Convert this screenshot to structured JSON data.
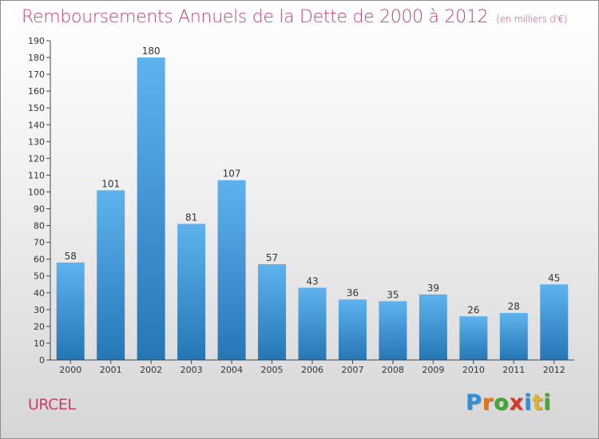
{
  "header": {
    "title": "Remboursements Annuels de la Dette de 2000 à 2012",
    "unit": "(en milliers d'€)"
  },
  "footer": {
    "location": "URCEL",
    "brand_letters": [
      "P",
      "r",
      "o",
      "x",
      "i",
      "t",
      "i"
    ],
    "brand_colors": [
      "#2f8fd8",
      "#e8741a",
      "#43a82f",
      "#d8362a",
      "#2f8fd8",
      "#e8b21a",
      "#43a82f"
    ]
  },
  "colors": {
    "title": "#c8406a",
    "bar_light": "#5eb3ee",
    "bar_dark": "#2576b5",
    "axis": "#444444"
  },
  "chart_data": {
    "type": "bar",
    "title": "Remboursements Annuels de la Dette de 2000 à 2012",
    "subtitle": "(en milliers d'€)",
    "xlabel": "",
    "ylabel": "",
    "categories": [
      "2000",
      "2001",
      "2002",
      "2003",
      "2004",
      "2005",
      "2006",
      "2007",
      "2008",
      "2009",
      "2010",
      "2011",
      "2012"
    ],
    "values": [
      58,
      101,
      180,
      81,
      107,
      57,
      43,
      36,
      35,
      39,
      26,
      28,
      45
    ],
    "ylim": [
      0,
      190
    ],
    "yticks": [
      0,
      10,
      20,
      30,
      40,
      50,
      60,
      70,
      80,
      90,
      100,
      110,
      120,
      130,
      140,
      150,
      160,
      170,
      180,
      190
    ],
    "grid": false,
    "data_labels": true
  }
}
